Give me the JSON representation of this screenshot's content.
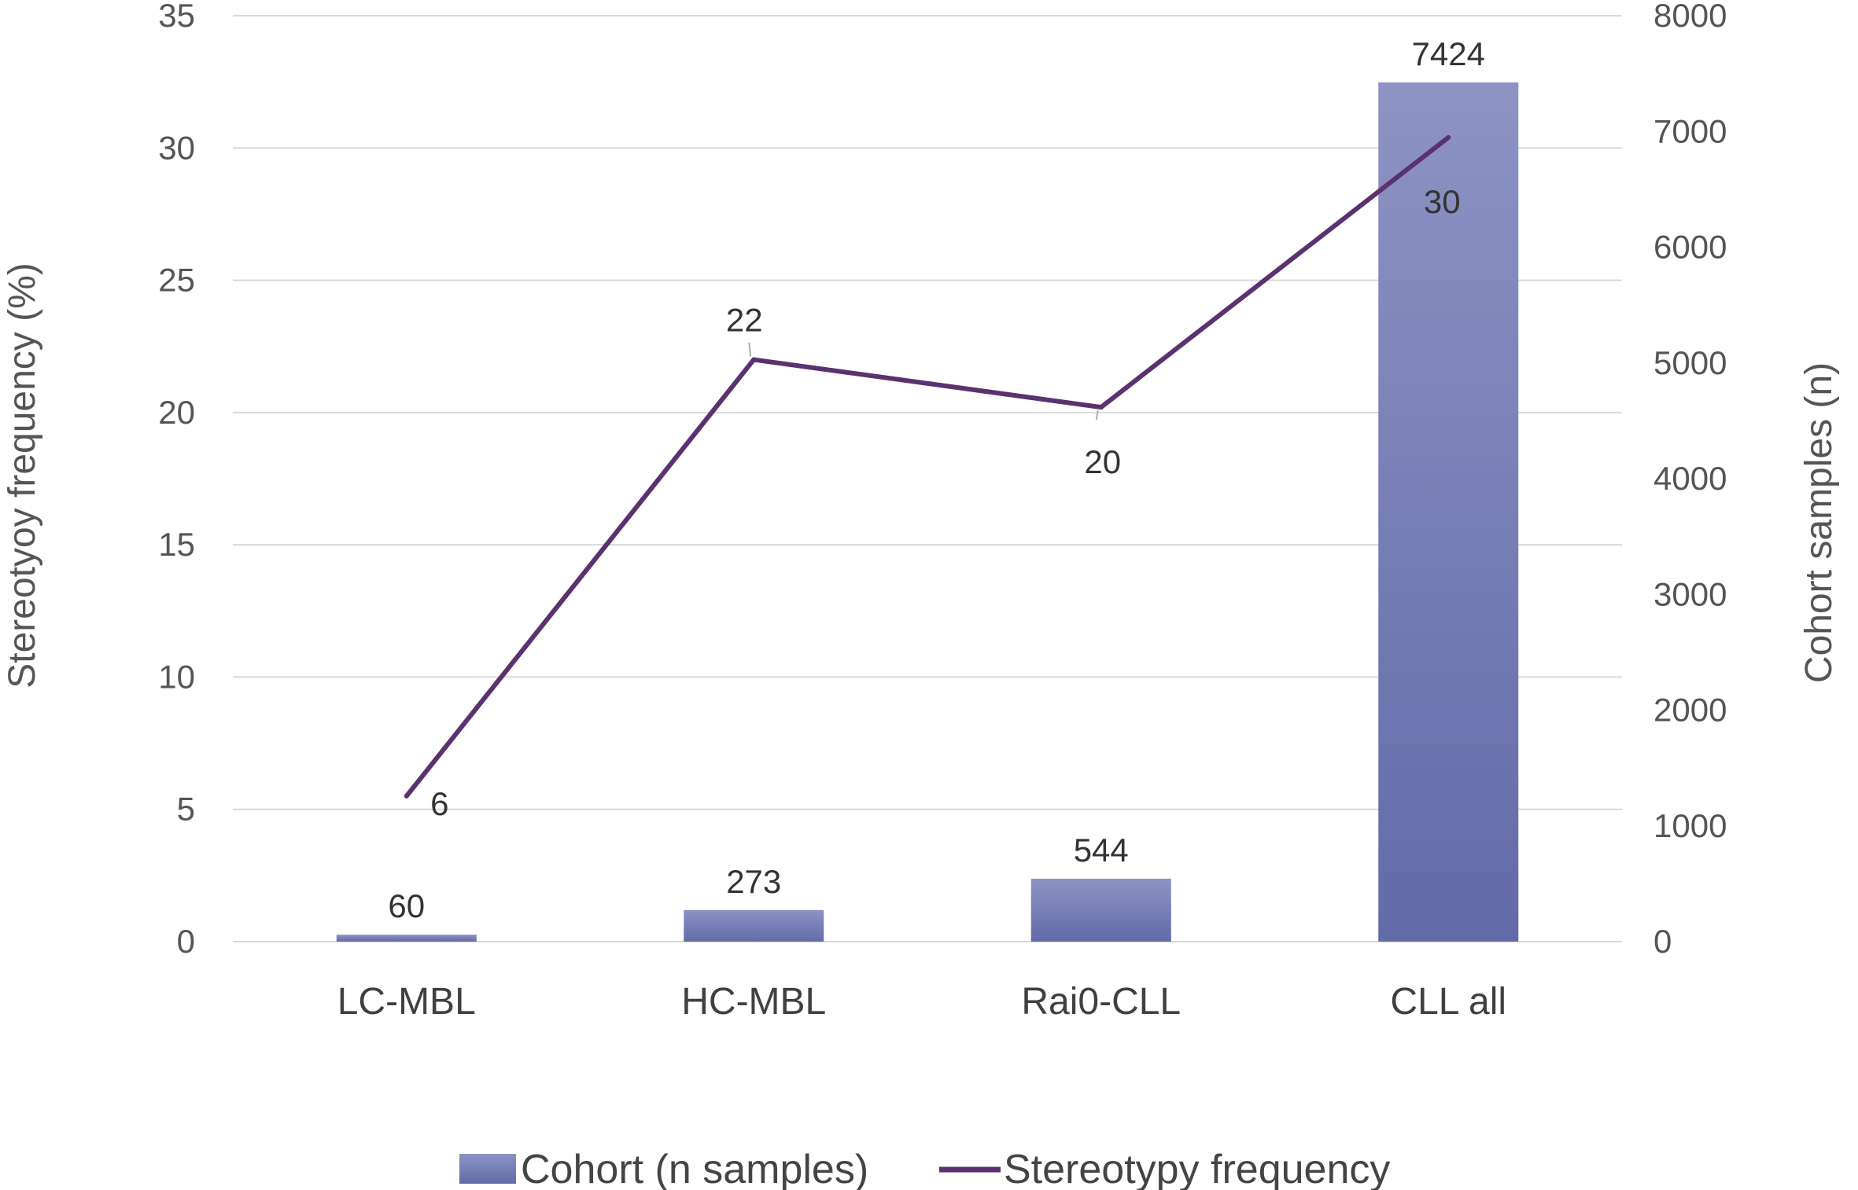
{
  "chart_data": {
    "type": "bar+line",
    "categories": [
      "LC-MBL",
      "HC-MBL",
      "Rai0-CLL",
      "CLL all"
    ],
    "series": [
      {
        "name": "Cohort (n samples)",
        "kind": "bar",
        "axis": "right",
        "values": [
          60,
          273,
          544,
          7424
        ],
        "labels": [
          "60",
          "273",
          "544",
          "7424"
        ],
        "color_top": "#8e93c4",
        "color_bottom": "#636aa8"
      },
      {
        "name": "Stereotypy frequency",
        "kind": "line",
        "axis": "left",
        "values": [
          5.5,
          22,
          20.2,
          30.4
        ],
        "labels": [
          "6",
          "22",
          "20",
          "30"
        ],
        "color": "#5b3170"
      }
    ],
    "y_left": {
      "label": "Stereotyoy frequency (%)",
      "min": 0,
      "max": 35,
      "ticks": [
        "0",
        "5",
        "10",
        "15",
        "20",
        "25",
        "30",
        "35"
      ]
    },
    "y_right": {
      "label": "Cohort samples (n)",
      "min": 0,
      "max": 8000,
      "ticks": [
        "0",
        "1000",
        "2000",
        "3000",
        "4000",
        "5000",
        "6000",
        "7000",
        "8000"
      ]
    },
    "gridlines": true,
    "legend_position": "bottom-center",
    "grid_color": "#d9d9d9"
  }
}
